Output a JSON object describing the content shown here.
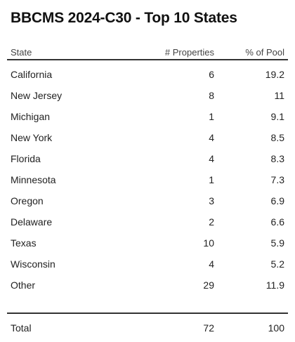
{
  "title": "BBCMS 2024-C30 - Top 10 States",
  "columns": {
    "state": "State",
    "properties": "# Properties",
    "pool": "% of Pool"
  },
  "rows": [
    {
      "state": "California",
      "properties": "6",
      "pool": "19.2"
    },
    {
      "state": "New Jersey",
      "properties": "8",
      "pool": "11"
    },
    {
      "state": "Michigan",
      "properties": "1",
      "pool": "9.1"
    },
    {
      "state": "New York",
      "properties": "4",
      "pool": "8.5"
    },
    {
      "state": "Florida",
      "properties": "4",
      "pool": "8.3"
    },
    {
      "state": "Minnesota",
      "properties": "1",
      "pool": "7.3"
    },
    {
      "state": "Oregon",
      "properties": "3",
      "pool": "6.9"
    },
    {
      "state": "Delaware",
      "properties": "2",
      "pool": "6.6"
    },
    {
      "state": "Texas",
      "properties": "10",
      "pool": "5.9"
    },
    {
      "state": "Wisconsin",
      "properties": "4",
      "pool": "5.2"
    },
    {
      "state": "Other",
      "properties": "29",
      "pool": "11.9"
    }
  ],
  "total": {
    "state": "Total",
    "properties": "72",
    "pool": "100"
  }
}
